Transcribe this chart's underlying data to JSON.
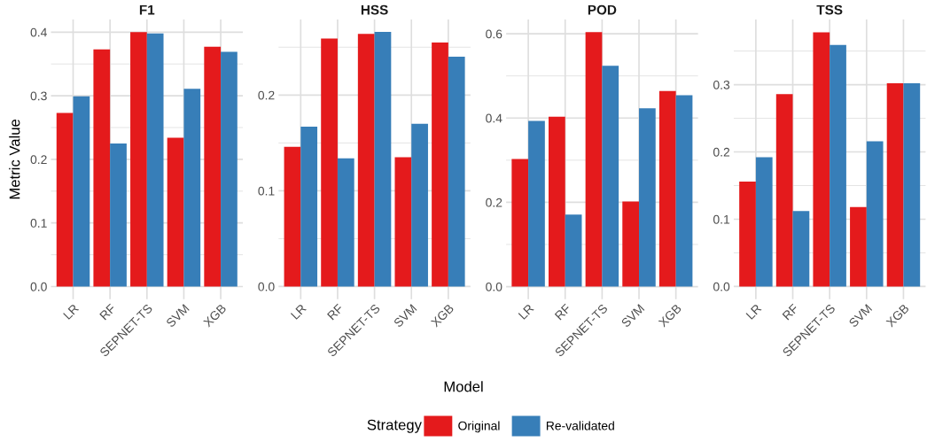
{
  "chart_data": [
    {
      "type": "bar",
      "title": "F1",
      "ylabel": "Metric Value",
      "legend": "bottom",
      "legend_title": "Strategy",
      "grid": true,
      "categories": [
        "LR",
        "RF",
        "SEPNET-TS",
        "SVM",
        "XGB"
      ],
      "series": [
        {
          "name": "Original",
          "color": "#e41a1c",
          "values": [
            0.273,
            0.373,
            0.4,
            0.234,
            0.377
          ]
        },
        {
          "name": "Re-validated",
          "color": "#377eb8",
          "values": [
            0.299,
            0.225,
            0.398,
            0.311,
            0.369
          ]
        }
      ],
      "ylim": [
        -0.02,
        0.42
      ],
      "yticks": [
        {
          "value": 0,
          "label": "0.0"
        },
        {
          "value": 0.05,
          "label": null
        },
        0.1,
        {
          "value": 0.15,
          "label": null
        },
        0.2,
        {
          "value": 0.25,
          "label": null
        },
        0.3,
        {
          "value": 0.35,
          "label": null
        },
        0.4
      ]
    },
    {
      "type": "bar",
      "title": "HSS",
      "xlabel": "Model",
      "grid": true,
      "categories": [
        "LR",
        "RF",
        "SEPNET-TS",
        "SVM",
        "XGB"
      ],
      "series": [
        {
          "color": "#e41a1c",
          "values": [
            0.146,
            0.259,
            0.264,
            0.135,
            0.255
          ]
        },
        {
          "color": "#377eb8",
          "values": [
            0.167,
            0.134,
            0.266,
            0.17,
            0.24
          ]
        }
      ],
      "ylim": [
        -0.0133,
        0.279
      ],
      "yticks": [
        {
          "value": 0,
          "label": "0.0"
        },
        {
          "value": 0.05,
          "label": null
        },
        0.1,
        {
          "value": 0.15,
          "label": null
        },
        0.2,
        {
          "value": 0.25,
          "label": null
        }
      ]
    },
    {
      "type": "bar",
      "title": "POD",
      "grid": true,
      "categories": [
        "LR",
        "RF",
        "SEPNET-TS",
        "SVM",
        "XGB"
      ],
      "series": [
        {
          "color": "#e41a1c",
          "values": [
            0.303,
            0.403,
            0.604,
            0.202,
            0.464
          ]
        },
        {
          "color": "#377eb8",
          "values": [
            0.393,
            0.171,
            0.524,
            0.423,
            0.454
          ]
        }
      ],
      "ylim": [
        -0.03,
        0.634
      ],
      "yticks": [
        {
          "value": 0,
          "label": "0.0"
        },
        {
          "value": 0.1,
          "label": null
        },
        0.2,
        {
          "value": 0.3,
          "label": null
        },
        0.4,
        {
          "value": 0.5,
          "label": null
        },
        0.6
      ]
    },
    {
      "type": "bar",
      "title": "TSS",
      "grid": true,
      "categories": [
        "LR",
        "RF",
        "SEPNET-TS",
        "SVM",
        "XGB"
      ],
      "series": [
        {
          "color": "#e41a1c",
          "values": [
            0.156,
            0.286,
            0.378,
            0.118,
            0.302
          ]
        },
        {
          "color": "#377eb8",
          "values": [
            0.192,
            0.112,
            0.359,
            0.216,
            0.302
          ]
        }
      ],
      "ylim": [
        -0.019,
        0.397
      ],
      "yticks": [
        {
          "value": 0,
          "label": "0.0"
        },
        {
          "value": 0.05,
          "label": null
        },
        0.1,
        {
          "value": 0.15,
          "label": null
        },
        0.2,
        {
          "value": 0.25,
          "label": null
        },
        0.3,
        {
          "value": 0.35,
          "label": null
        }
      ]
    }
  ]
}
